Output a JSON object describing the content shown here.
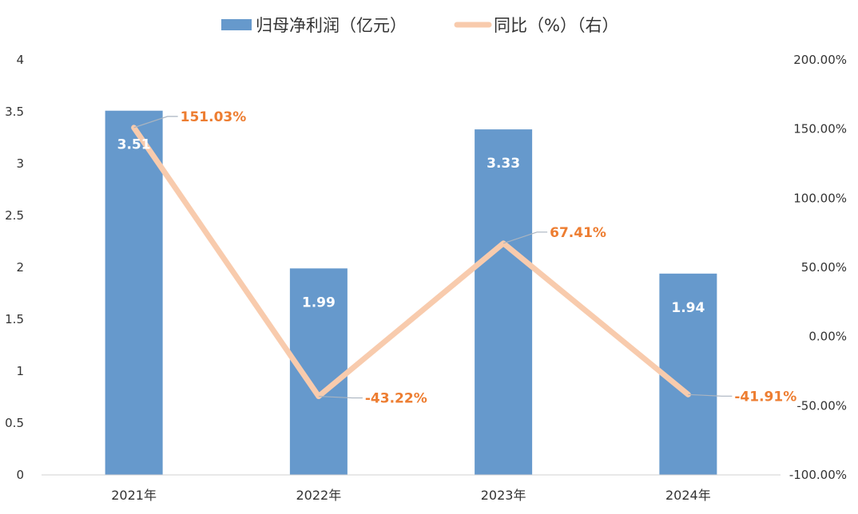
{
  "chart_data": {
    "type": "bar",
    "categories": [
      "2021年",
      "2022年",
      "2023年",
      "2024年"
    ],
    "series": [
      {
        "name": "归母净利润（亿元）",
        "type": "bar",
        "axis": "left",
        "values": [
          3.51,
          1.99,
          3.33,
          1.94
        ],
        "labels": [
          "3.51",
          "1.99",
          "3.33",
          "1.94"
        ],
        "color": "#6699CC"
      },
      {
        "name": "同比（%）（右）",
        "type": "line",
        "axis": "right",
        "values": [
          151.03,
          -43.22,
          67.41,
          -41.91
        ],
        "labels": [
          "151.03%",
          "-43.22%",
          "67.41%",
          "-41.91%"
        ],
        "color": "#F8CBAD",
        "label_color": "#ED7D31"
      }
    ],
    "y_left": {
      "ylim": [
        0,
        4
      ],
      "ticks": [
        0,
        0.5,
        1,
        1.5,
        2,
        2.5,
        3,
        3.5,
        4
      ],
      "tick_labels": [
        "0",
        "0.5",
        "1",
        "1.5",
        "2",
        "2.5",
        "3",
        "3.5",
        "4"
      ]
    },
    "y_right": {
      "ylim": [
        -100,
        200
      ],
      "ticks": [
        -100,
        -50,
        0,
        50,
        100,
        150,
        200
      ],
      "tick_labels": [
        "-100.00%",
        "-50.00%",
        "0.00%",
        "50.00%",
        "100.00%",
        "150.00%",
        "200.00%"
      ]
    },
    "grid": false,
    "legend_position": "top-center"
  }
}
